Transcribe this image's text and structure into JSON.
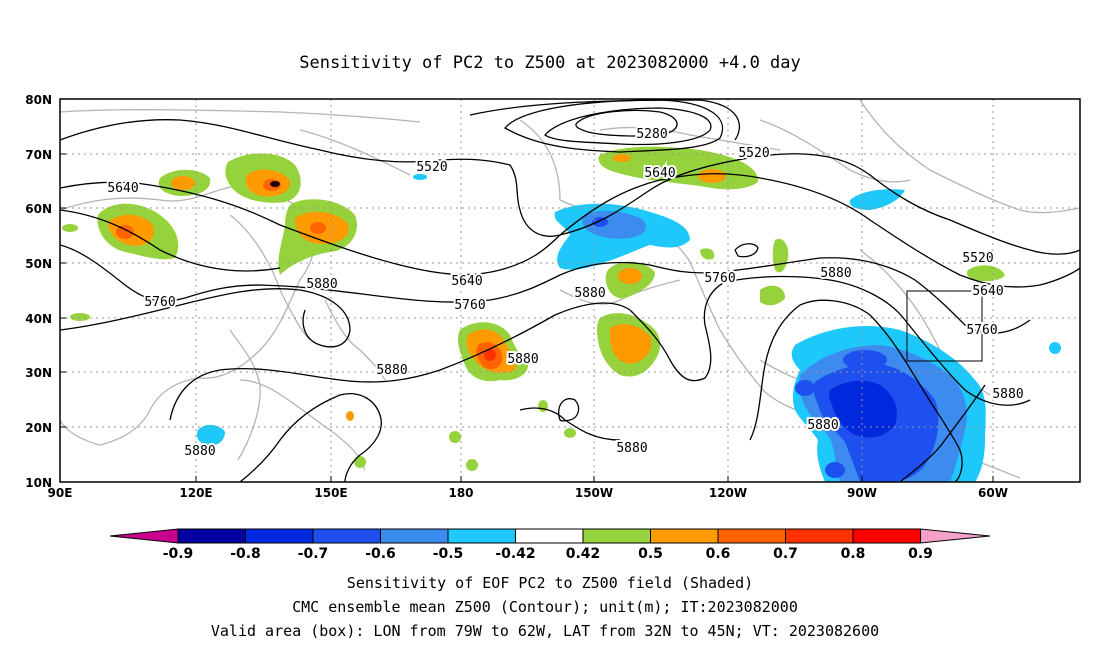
{
  "title": "Sensitivity of PC2 to Z500 at 2023082000 +4.0 day",
  "lat_ticks": [
    "80N",
    "70N",
    "60N",
    "50N",
    "40N",
    "30N",
    "20N",
    "10N"
  ],
  "lon_ticks": [
    "90E",
    "120E",
    "150E",
    "180",
    "150W",
    "120W",
    "90W",
    "60W"
  ],
  "contour_labels": [
    "5280",
    "5520",
    "5520",
    "5640",
    "5640",
    "5520",
    "5640",
    "5640",
    "5760",
    "5760",
    "5760",
    "5760",
    "5880",
    "5880",
    "5880",
    "5880",
    "5880",
    "5880",
    "5880",
    "5880"
  ],
  "colorbar": {
    "labels": [
      "-0.9",
      "-0.8",
      "-0.7",
      "-0.6",
      "-0.5",
      "-0.42",
      "0.42",
      "0.5",
      "0.6",
      "0.7",
      "0.8",
      "0.9"
    ],
    "colors": [
      "#c8008c",
      "#0000a0",
      "#0028dc",
      "#1e50f0",
      "#3c8cf0",
      "#1ec8fa",
      "#ffffff",
      "#96d23c",
      "#ff9b00",
      "#ff6400",
      "#ff3200",
      "#ff0000",
      "#f5a0c8"
    ]
  },
  "caption": {
    "line1": "Sensitivity of EOF PC2 to Z500 field (Shaded)",
    "line2": "CMC ensemble mean Z500 (Contour); unit(m); IT:2023082000",
    "line3": "Valid area (box): LON from 79W to 62W, LAT from 32N to 45N; VT: 2023082600"
  }
}
